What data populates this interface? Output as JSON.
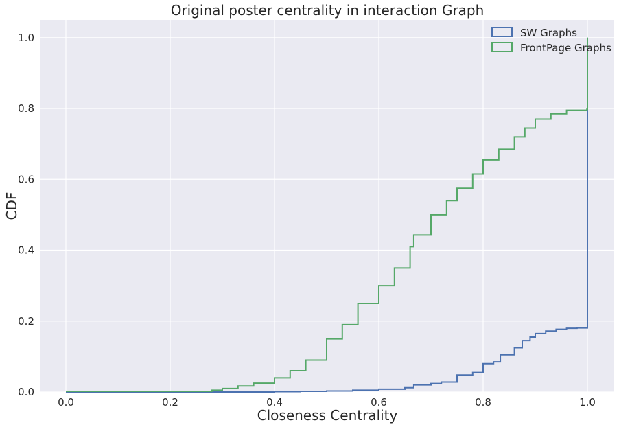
{
  "chart_data": {
    "type": "line",
    "style": "step-cdf",
    "title": "Original poster centrality in interaction Graph",
    "xlabel": "Closeness Centrality",
    "ylabel": "CDF",
    "xlim": [
      -0.05,
      1.05
    ],
    "ylim": [
      0,
      1.05
    ],
    "xticks": [
      0.0,
      0.2,
      0.4,
      0.6,
      0.8,
      1.0
    ],
    "xtick_labels": [
      "0.0",
      "0.2",
      "0.4",
      "0.6",
      "0.8",
      "1.0"
    ],
    "yticks": [
      0.0,
      0.2,
      0.4,
      0.6,
      0.8,
      1.0
    ],
    "ytick_labels": [
      "0.0",
      "0.2",
      "0.4",
      "0.6",
      "0.8",
      "1.0"
    ],
    "grid": true,
    "background": "#EAEAF2",
    "legend_position": "top-right",
    "series": [
      {
        "name": "SW Graphs",
        "color": "#4C72B0",
        "x": [
          0.0,
          0.3,
          0.4,
          0.45,
          0.5,
          0.55,
          0.6,
          0.65,
          0.667,
          0.7,
          0.72,
          0.75,
          0.78,
          0.8,
          0.82,
          0.833,
          0.86,
          0.875,
          0.89,
          0.9,
          0.92,
          0.94,
          0.96,
          0.98,
          0.999,
          1.0,
          1.0
        ],
        "y": [
          0.0,
          0.0,
          0.001,
          0.002,
          0.003,
          0.005,
          0.008,
          0.012,
          0.02,
          0.024,
          0.028,
          0.048,
          0.055,
          0.08,
          0.085,
          0.105,
          0.125,
          0.145,
          0.155,
          0.165,
          0.172,
          0.177,
          0.18,
          0.181,
          0.181,
          0.181,
          1.0
        ]
      },
      {
        "name": "FrontPage Graphs",
        "color": "#55A868",
        "x": [
          0.0,
          0.25,
          0.28,
          0.3,
          0.33,
          0.36,
          0.4,
          0.43,
          0.46,
          0.5,
          0.53,
          0.56,
          0.6,
          0.63,
          0.66,
          0.667,
          0.7,
          0.73,
          0.75,
          0.78,
          0.8,
          0.83,
          0.86,
          0.88,
          0.9,
          0.93,
          0.96,
          0.999,
          1.0,
          1.0
        ],
        "y": [
          0.002,
          0.002,
          0.005,
          0.01,
          0.017,
          0.025,
          0.04,
          0.06,
          0.09,
          0.15,
          0.19,
          0.25,
          0.3,
          0.35,
          0.41,
          0.443,
          0.5,
          0.54,
          0.575,
          0.615,
          0.655,
          0.685,
          0.72,
          0.745,
          0.77,
          0.785,
          0.795,
          0.798,
          0.798,
          1.0
        ]
      }
    ]
  }
}
